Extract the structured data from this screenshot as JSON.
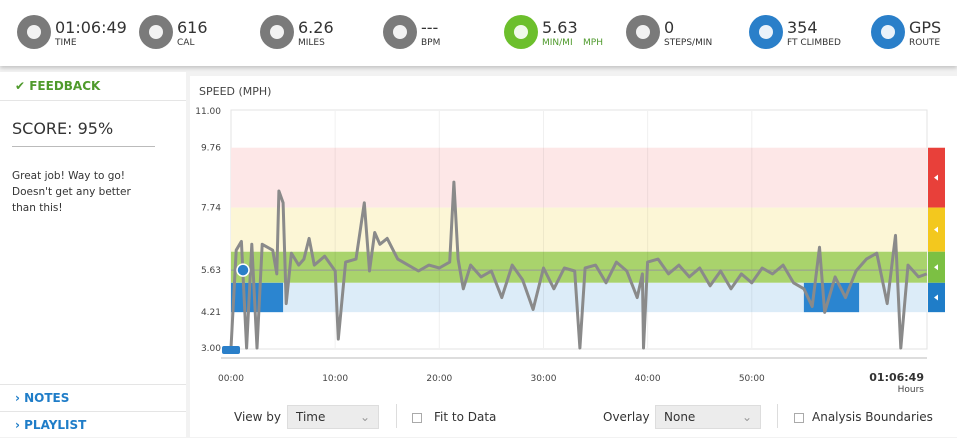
{
  "stats": [
    {
      "value": "01:06:49",
      "label": "TIME",
      "icon_color": "#7a7a7a"
    },
    {
      "value": "616",
      "label": "CAL",
      "icon_color": "#7a7a7a"
    },
    {
      "value": "6.26",
      "label": "MILES",
      "icon_color": "#7a7a7a"
    },
    {
      "value": "---",
      "label": "BPM",
      "icon_color": "#7a7a7a"
    },
    {
      "value": "5.63",
      "label": "MIN/MI",
      "label2": "MPH",
      "icon_color": "#6cbf2c"
    },
    {
      "value": "0",
      "label": "STEPS/MIN",
      "icon_color": "#7a7a7a"
    },
    {
      "value": "354",
      "label": "FT CLIMBED",
      "icon_color": "#2a7fc9"
    },
    {
      "value": "GPS",
      "label": "ROUTE",
      "icon_color": "#2a7fc9"
    }
  ],
  "feedback": {
    "header": "FEEDBACK",
    "score": "SCORE: 95%",
    "lines": [
      "Great job! Way to go!",
      "Doesn't get any better",
      "than this!"
    ]
  },
  "nav": {
    "notes": "NOTES",
    "playlist": "PLAYLIST"
  },
  "chart_data": {
    "type": "line",
    "title": "SPEED (MPH)",
    "color": "#8a8a8a",
    "grid": true,
    "x": [
      0,
      0.5,
      1,
      1.5,
      2,
      2.5,
      3,
      4,
      4.4,
      4.6,
      5,
      5.3,
      5.8,
      6.5,
      7,
      7.5,
      8,
      9,
      10,
      10.3,
      11,
      12,
      12.8,
      13.3,
      13.8,
      14.3,
      15,
      16,
      17,
      18,
      19,
      20,
      21,
      21.4,
      21.8,
      22.3,
      23,
      24,
      25,
      26,
      27,
      28,
      29,
      30,
      31,
      32,
      33,
      33.5,
      34,
      35,
      36,
      37,
      38,
      39,
      39.5,
      39.6,
      40,
      41,
      42,
      43,
      44,
      45,
      46,
      47,
      48,
      49,
      50,
      51,
      52,
      53,
      54,
      55,
      55.8,
      56.5,
      57,
      58,
      59,
      60,
      61,
      62,
      63,
      63.8,
      64.3,
      65,
      66,
      66.8
    ],
    "values": [
      3.0,
      6.3,
      6.6,
      3.0,
      6.5,
      3.0,
      6.5,
      6.3,
      5.5,
      8.3,
      7.9,
      4.5,
      6.2,
      5.8,
      6.0,
      6.7,
      5.8,
      6.1,
      5.6,
      3.3,
      5.9,
      6.0,
      7.9,
      5.6,
      6.9,
      6.5,
      6.7,
      6.0,
      5.8,
      5.6,
      5.8,
      5.7,
      5.9,
      8.6,
      6.0,
      5.0,
      5.8,
      5.4,
      5.6,
      4.7,
      5.8,
      5.3,
      4.3,
      5.7,
      5.0,
      5.7,
      5.6,
      3.0,
      5.7,
      5.8,
      5.2,
      5.9,
      5.6,
      4.7,
      5.5,
      3.0,
      5.9,
      6.0,
      5.5,
      5.8,
      5.4,
      5.7,
      5.1,
      5.6,
      5.0,
      5.5,
      5.2,
      5.7,
      5.5,
      5.8,
      5.2,
      5.0,
      4.4,
      6.4,
      4.2,
      5.4,
      4.7,
      5.6,
      6.0,
      6.2,
      4.5,
      6.8,
      3.0,
      5.8,
      5.4,
      5.5
    ],
    "xlim": [
      0,
      66.82
    ],
    "xticks": [
      {
        "value": 0,
        "label": "00:00"
      },
      {
        "value": 10,
        "label": "10:00"
      },
      {
        "value": 20,
        "label": "20:00"
      },
      {
        "value": 30,
        "label": "30:00"
      },
      {
        "value": 40,
        "label": "40:00"
      },
      {
        "value": 50,
        "label": "50:00"
      }
    ],
    "x_end_label": "01:06:49",
    "x_end_unit": "Hours",
    "ylim": [
      3,
      11
    ],
    "yticks": [
      {
        "value": 3,
        "label": "3.00"
      },
      4.21,
      5.63,
      7.74,
      9.76,
      {
        "value": 11,
        "label": "11.00"
      }
    ],
    "reference": 5.63,
    "zones": [
      {
        "from": 7.74,
        "to": 9.76,
        "color": "#fde7e7",
        "marker": "#e8403a"
      },
      {
        "from": 6.25,
        "to": 7.74,
        "color": "#fcf6d6",
        "marker": "#f3c81e"
      },
      {
        "from": 5.2,
        "to": 6.25,
        "color": "#a9d36c",
        "marker": "#7cc043"
      },
      {
        "from": 4.21,
        "to": 5.2,
        "color": "#dcecf8",
        "marker": "#1f7dc8"
      }
    ],
    "highlights": [
      [
        0,
        5
      ],
      [
        55,
        60.3
      ]
    ],
    "highlight_color": "#2b85d0"
  },
  "controls": {
    "view_by": "View by",
    "view_value": "Time",
    "fit": "Fit to Data",
    "overlay": "Overlay",
    "overlay_value": "None",
    "boundaries": "Analysis Boundaries"
  }
}
